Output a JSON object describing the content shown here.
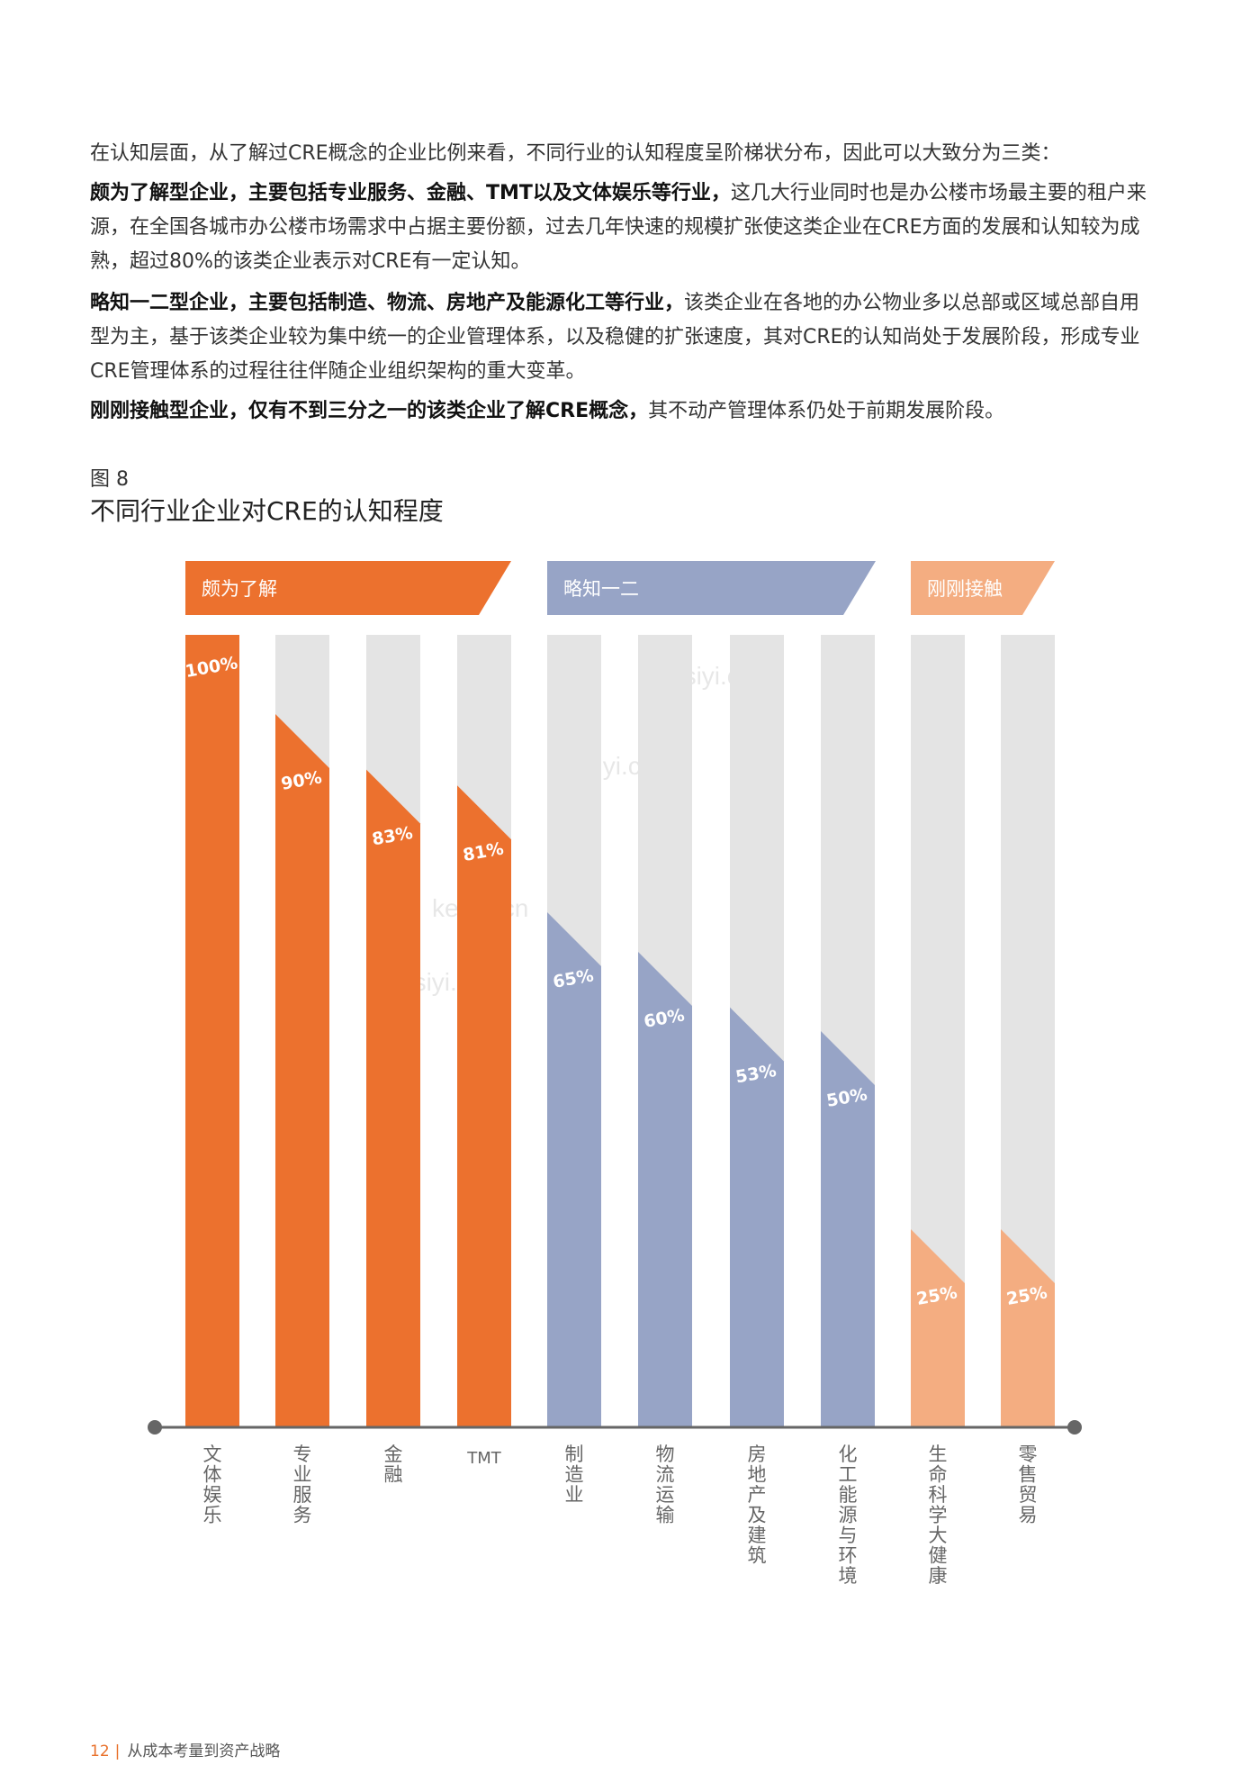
{
  "paragraphs": {
    "p1": "在认知层面，从了解过CRE概念的企业比例来看，不同行业的认知程度呈阶梯状分布，因此可以大致分为三类：",
    "p2_bold": "颇为了解型企业，主要包括专业服务、金融、TMT以及文体娱乐等行业，",
    "p2_rest": "这几大行业同时也是办公楼市场最主要的租户来源，在全国各城市办公楼市场需求中占据主要份额，过去几年快速的规模扩张使这类企业在CRE方面的发展和认知较为成熟，超过80%的该类企业表示对CRE有一定认知。",
    "p3_bold": "略知一二型企业，主要包括制造、物流、房地产及能源化工等行业，",
    "p3_rest": "该类企业在各地的办公物业多以总部或区域总部自用型为主，基于该类企业较为集中统一的企业管理体系，以及稳健的扩张速度，其对CRE的认知尚处于发展阶段，形成专业CRE管理体系的过程往往伴随企业组织架构的重大变革。",
    "p4_bold": "刚刚接触型企业，仅有不到三分之一的该类企业了解CRE概念，",
    "p4_rest": "其不动产管理体系仍处于前期发展阶段。"
  },
  "figure": {
    "label": "图 8",
    "title": "不同行业企业对CRE的认知程度"
  },
  "chart_data": {
    "type": "bar",
    "groups": [
      {
        "name": "颇为了解",
        "color": "#ec712e",
        "count": 4
      },
      {
        "name": "略知一二",
        "color": "#97a4c6",
        "count": 4
      },
      {
        "name": "刚刚接触",
        "color": "#f4ad81",
        "count": 2
      }
    ],
    "categories": [
      "文体娱乐",
      "专业服务",
      "金融",
      "TMT",
      "制造业",
      "物流运输",
      "房地产及建筑",
      "化工能源与环境",
      "生命科学大健康",
      "零售贸易"
    ],
    "values": [
      100,
      90,
      83,
      81,
      65,
      60,
      53,
      50,
      25,
      25
    ],
    "value_labels": [
      "100%",
      "90%",
      "83%",
      "81%",
      "65%",
      "60%",
      "53%",
      "50%",
      "25%",
      "25%"
    ],
    "ylim": [
      0,
      100
    ],
    "background_bar_color": "#e4e4e4"
  },
  "watermark": "kesiyi.cn",
  "footer": {
    "page_number": "12",
    "separator": "|",
    "text": "从成本考量到资产战略"
  }
}
